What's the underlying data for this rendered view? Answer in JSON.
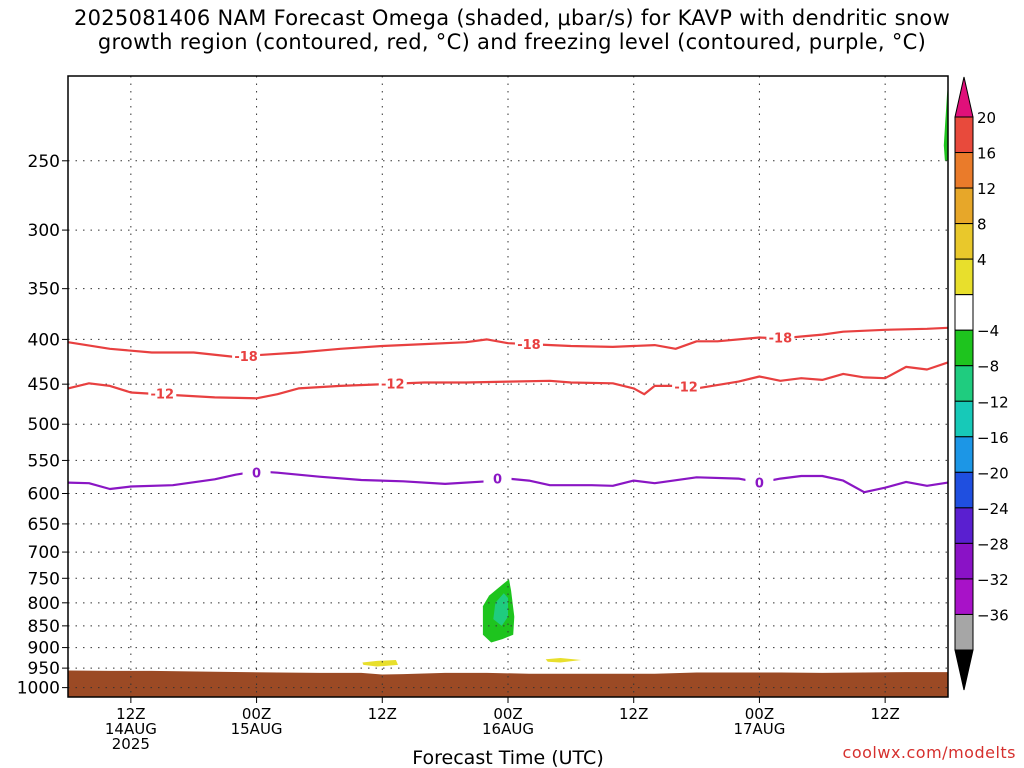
{
  "title": {
    "line1": "2025081406 NAM Forecast Omega (shaded, μbar/s) for KAVP with dendritic snow",
    "line2": "growth region (contoured, red, °C) and freezing level (contoured, purple, °C)"
  },
  "credit": "coolwx.com/modelts",
  "chart_data": {
    "type": "time-height cross section",
    "xlabel": "Forecast Time (UTC)",
    "x_ticks": [
      {
        "l1": "12Z",
        "l2": "14AUG",
        "l3": "2025"
      },
      {
        "l1": "00Z",
        "l2": "15AUG",
        "l3": ""
      },
      {
        "l1": "12Z",
        "l2": "",
        "l3": ""
      },
      {
        "l1": "00Z",
        "l2": "16AUG",
        "l3": ""
      },
      {
        "l1": "12Z",
        "l2": "",
        "l3": ""
      },
      {
        "l1": "00Z",
        "l2": "17AUG",
        "l3": ""
      },
      {
        "l1": "12Z",
        "l2": "",
        "l3": ""
      }
    ],
    "x_tick_hours": [
      12,
      24,
      36,
      48,
      60,
      72,
      84
    ],
    "xlim_hours": [
      6,
      90
    ],
    "y_ticks": [
      250,
      300,
      350,
      400,
      450,
      500,
      550,
      600,
      650,
      700,
      750,
      800,
      850,
      900,
      950,
      1000
    ],
    "ylim_mb": [
      200,
      1025
    ],
    "y_scale": "log (pressure)",
    "grid": true,
    "colorbar": {
      "labels": [
        "20",
        "16",
        "12",
        "8",
        "4",
        "−4",
        "−8",
        "−12",
        "−16",
        "−20",
        "−24",
        "−28",
        "−32",
        "−36"
      ],
      "colors": [
        "#e0107a",
        "#e84a3c",
        "#ea7b2a",
        "#e7a729",
        "#e9c82b",
        "#e8df2c",
        "#ffffff",
        "#1ec41e",
        "#1fcc7f",
        "#17c9b8",
        "#1c96e6",
        "#1f4fe0",
        "#5a1fd0",
        "#8a12c6",
        "#a812c8",
        "#a6a6a6",
        "#000000"
      ]
    },
    "contours": [
      {
        "value": "-18",
        "color": "#e84040",
        "points": [
          [
            6,
            403
          ],
          [
            10,
            410
          ],
          [
            14,
            414
          ],
          [
            18,
            414
          ],
          [
            22,
            419
          ],
          [
            24,
            417
          ],
          [
            28,
            414
          ],
          [
            32,
            410
          ],
          [
            36,
            407
          ],
          [
            40,
            405
          ],
          [
            44,
            403
          ],
          [
            46,
            400
          ],
          [
            48,
            404
          ],
          [
            50,
            405
          ],
          [
            54,
            407
          ],
          [
            58,
            408
          ],
          [
            62,
            406
          ],
          [
            64,
            410
          ],
          [
            66,
            402
          ],
          [
            68,
            402
          ],
          [
            72,
            398
          ],
          [
            74,
            399
          ],
          [
            76,
            397
          ],
          [
            78,
            395
          ],
          [
            80,
            392
          ],
          [
            84,
            390
          ],
          [
            88,
            389
          ],
          [
            90,
            388
          ]
        ],
        "labels": [
          [
            23,
            418
          ],
          [
            50,
            405
          ],
          [
            74,
            398
          ]
        ]
      },
      {
        "value": "-12",
        "color": "#e84040",
        "points": [
          [
            6,
            455
          ],
          [
            8,
            449
          ],
          [
            10,
            452
          ],
          [
            12,
            460
          ],
          [
            16,
            463
          ],
          [
            20,
            466
          ],
          [
            24,
            467
          ],
          [
            26,
            462
          ],
          [
            28,
            455
          ],
          [
            32,
            452
          ],
          [
            36,
            450
          ],
          [
            40,
            448
          ],
          [
            44,
            448
          ],
          [
            48,
            447
          ],
          [
            52,
            446
          ],
          [
            54,
            448
          ],
          [
            58,
            449
          ],
          [
            60,
            455
          ],
          [
            61,
            462
          ],
          [
            62,
            452
          ],
          [
            64,
            452
          ],
          [
            66,
            455
          ],
          [
            70,
            447
          ],
          [
            72,
            441
          ],
          [
            74,
            446
          ],
          [
            76,
            443
          ],
          [
            78,
            445
          ],
          [
            80,
            438
          ],
          [
            82,
            442
          ],
          [
            84,
            443
          ],
          [
            86,
            430
          ],
          [
            88,
            433
          ],
          [
            90,
            425
          ]
        ],
        "labels": [
          [
            15,
            461
          ],
          [
            37,
            449
          ],
          [
            65,
            453
          ]
        ]
      },
      {
        "value": "0",
        "color": "#8a16c4",
        "points": [
          [
            6,
            583
          ],
          [
            8,
            584
          ],
          [
            10,
            593
          ],
          [
            12,
            589
          ],
          [
            16,
            587
          ],
          [
            20,
            578
          ],
          [
            22,
            571
          ],
          [
            24,
            566
          ],
          [
            26,
            568
          ],
          [
            30,
            574
          ],
          [
            34,
            579
          ],
          [
            38,
            581
          ],
          [
            42,
            585
          ],
          [
            46,
            581
          ],
          [
            48,
            577
          ],
          [
            50,
            580
          ],
          [
            52,
            587
          ],
          [
            56,
            587
          ],
          [
            58,
            588
          ],
          [
            60,
            580
          ],
          [
            62,
            584
          ],
          [
            66,
            575
          ],
          [
            70,
            577
          ],
          [
            72,
            583
          ],
          [
            74,
            577
          ],
          [
            76,
            573
          ],
          [
            78,
            573
          ],
          [
            80,
            580
          ],
          [
            82,
            598
          ],
          [
            84,
            591
          ],
          [
            86,
            582
          ],
          [
            88,
            588
          ],
          [
            90,
            583
          ]
        ],
        "labels": [
          [
            24,
            568
          ],
          [
            47,
            577
          ],
          [
            72,
            583
          ]
        ]
      }
    ],
    "shaded": [
      {
        "value_range": "-8 to -4",
        "color": "#1ec41e",
        "points": [
          [
            45.6,
            807
          ],
          [
            46.2,
            785
          ],
          [
            47.5,
            762
          ],
          [
            48.1,
            752
          ],
          [
            48.3,
            775
          ],
          [
            48.6,
            830
          ],
          [
            48.5,
            870
          ],
          [
            47.5,
            880
          ],
          [
            46.4,
            888
          ],
          [
            45.6,
            870
          ]
        ]
      },
      {
        "value_range": "-12 to -8",
        "color": "#1fcc7f",
        "points": [
          [
            46.8,
            800
          ],
          [
            47.6,
            780
          ],
          [
            48.0,
            790
          ],
          [
            48.0,
            830
          ],
          [
            47.4,
            850
          ],
          [
            46.6,
            835
          ]
        ]
      },
      {
        "value_range": "4 to 8",
        "color": "#e8df2c",
        "points": [
          [
            34.1,
            936
          ],
          [
            35.5,
            932
          ],
          [
            37.3,
            930
          ],
          [
            37.5,
            942
          ],
          [
            35.5,
            946
          ],
          [
            34.2,
            942
          ]
        ]
      },
      {
        "value_range": "4 to 8",
        "color": "#e8df2c",
        "points": [
          [
            51.6,
            928
          ],
          [
            53.0,
            925
          ],
          [
            55.0,
            930
          ],
          [
            53.0,
            936
          ],
          [
            51.8,
            934
          ]
        ]
      },
      {
        "value_range": "-8 to -4",
        "color": "#1ec41e",
        "points": [
          [
            89.7,
            250
          ],
          [
            89.6,
            240
          ],
          [
            89.9,
            210
          ],
          [
            90,
            205
          ],
          [
            90,
            250
          ]
        ]
      }
    ],
    "surface": {
      "color": "#9b4a25",
      "points": [
        [
          6,
          956
        ],
        [
          10,
          957
        ],
        [
          14,
          957
        ],
        [
          20,
          959
        ],
        [
          26,
          961
        ],
        [
          30,
          962
        ],
        [
          34,
          962
        ],
        [
          36,
          966
        ],
        [
          38,
          965
        ],
        [
          42,
          962
        ],
        [
          46,
          962
        ],
        [
          50,
          964
        ],
        [
          54,
          964
        ],
        [
          58,
          964
        ],
        [
          62,
          964
        ],
        [
          66,
          961
        ],
        [
          70,
          961
        ],
        [
          74,
          961
        ],
        [
          78,
          962
        ],
        [
          82,
          961
        ],
        [
          86,
          960
        ],
        [
          90,
          960
        ]
      ]
    }
  }
}
